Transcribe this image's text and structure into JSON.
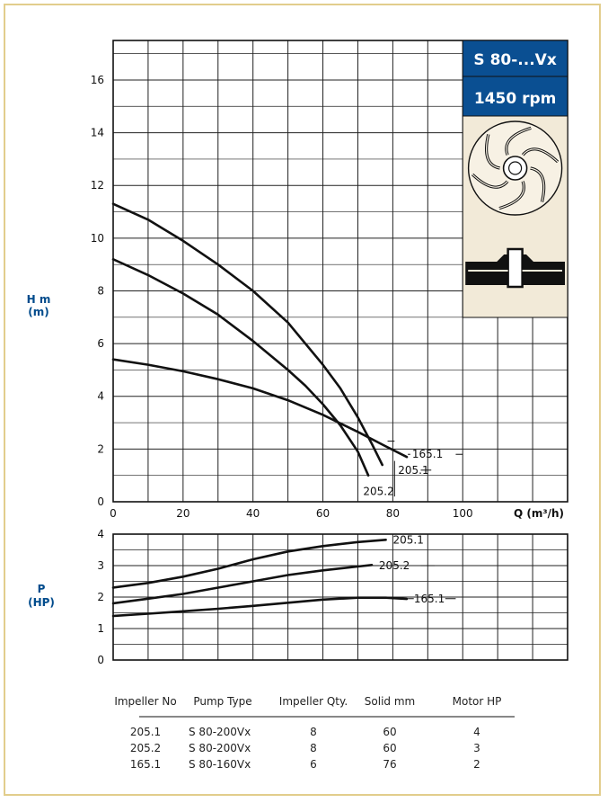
{
  "chart_data": [
    {
      "type": "line",
      "title": "",
      "xlabel": "Q (m³/h)",
      "ylabel_line1": "H m",
      "ylabel_line2": "(m)",
      "xlim": [
        0,
        130
      ],
      "ylim": [
        0,
        17.5
      ],
      "x_ticks": [
        0,
        20,
        40,
        60,
        80,
        100
      ],
      "y_ticks": [
        0,
        2,
        4,
        6,
        8,
        10,
        12,
        14,
        16
      ],
      "grid": true,
      "series": [
        {
          "name": "205.1",
          "x": [
            0,
            10,
            20,
            30,
            40,
            50,
            60,
            65,
            70,
            74,
            77
          ],
          "y": [
            11.3,
            10.7,
            9.9,
            9.0,
            8.0,
            6.8,
            5.2,
            4.3,
            3.2,
            2.2,
            1.4
          ]
        },
        {
          "name": "205.2",
          "x": [
            0,
            10,
            20,
            30,
            40,
            50,
            55,
            60,
            65,
            70,
            73
          ],
          "y": [
            9.2,
            8.6,
            7.9,
            7.1,
            6.1,
            5.0,
            4.4,
            3.7,
            2.9,
            1.9,
            1.0
          ]
        },
        {
          "name": "165.1",
          "x": [
            0,
            10,
            20,
            30,
            40,
            50,
            60,
            70,
            78,
            84
          ],
          "y": [
            5.4,
            5.2,
            4.95,
            4.65,
            4.3,
            3.85,
            3.3,
            2.65,
            2.1,
            1.7
          ]
        }
      ],
      "labels": [
        {
          "text": "165.1",
          "x": 85,
          "y": 1.8
        },
        {
          "text": "205.1",
          "x": 81,
          "y": 1.2
        },
        {
          "text": "205.2",
          "x": 71,
          "y": 0.4
        }
      ],
      "badge_model": "S 80-...Vx",
      "badge_rpm": "1450 rpm",
      "badge_color": "#0a4f92",
      "image_bg": "#f2ead8"
    },
    {
      "type": "line",
      "title": "",
      "xlabel": "",
      "ylabel_line1": "P",
      "ylabel_line2": "(HP)",
      "xlim": [
        0,
        130
      ],
      "ylim": [
        0,
        4
      ],
      "y_ticks": [
        0,
        1,
        2,
        3,
        4
      ],
      "grid": true,
      "series": [
        {
          "name": "205.1",
          "x": [
            0,
            10,
            20,
            30,
            40,
            50,
            60,
            70,
            78
          ],
          "y": [
            2.3,
            2.45,
            2.65,
            2.9,
            3.2,
            3.45,
            3.62,
            3.75,
            3.82
          ]
        },
        {
          "name": "205.2",
          "x": [
            0,
            10,
            20,
            30,
            40,
            50,
            60,
            70,
            74
          ],
          "y": [
            1.8,
            1.95,
            2.1,
            2.3,
            2.5,
            2.7,
            2.85,
            2.97,
            3.02
          ]
        },
        {
          "name": "165.1",
          "x": [
            0,
            10,
            20,
            30,
            40,
            50,
            60,
            70,
            78,
            84
          ],
          "y": [
            1.4,
            1.47,
            1.55,
            1.63,
            1.72,
            1.82,
            1.92,
            1.98,
            1.98,
            1.94
          ]
        }
      ],
      "labels": [
        {
          "text": "205.1",
          "x": 79,
          "y": 3.82
        },
        {
          "text": "205.2",
          "x": 75,
          "y": 3.0
        },
        {
          "text": "165.1",
          "x": 85,
          "y": 1.95
        }
      ]
    }
  ],
  "table": {
    "headers": [
      "Impeller No",
      "Pump Type",
      "Impeller Qty.",
      "Solid mm",
      "Motor HP"
    ],
    "rows": [
      [
        "205.1",
        "S 80-200Vx",
        "8",
        "60",
        "4"
      ],
      [
        "205.2",
        "S 80-200Vx",
        "8",
        "60",
        "3"
      ],
      [
        "165.1",
        "S 80-160Vx",
        "6",
        "76",
        "2"
      ]
    ]
  },
  "colors": {
    "frame": "#e2cd8c",
    "accent": "#0a4f92",
    "axis_label": "#004b8c"
  }
}
